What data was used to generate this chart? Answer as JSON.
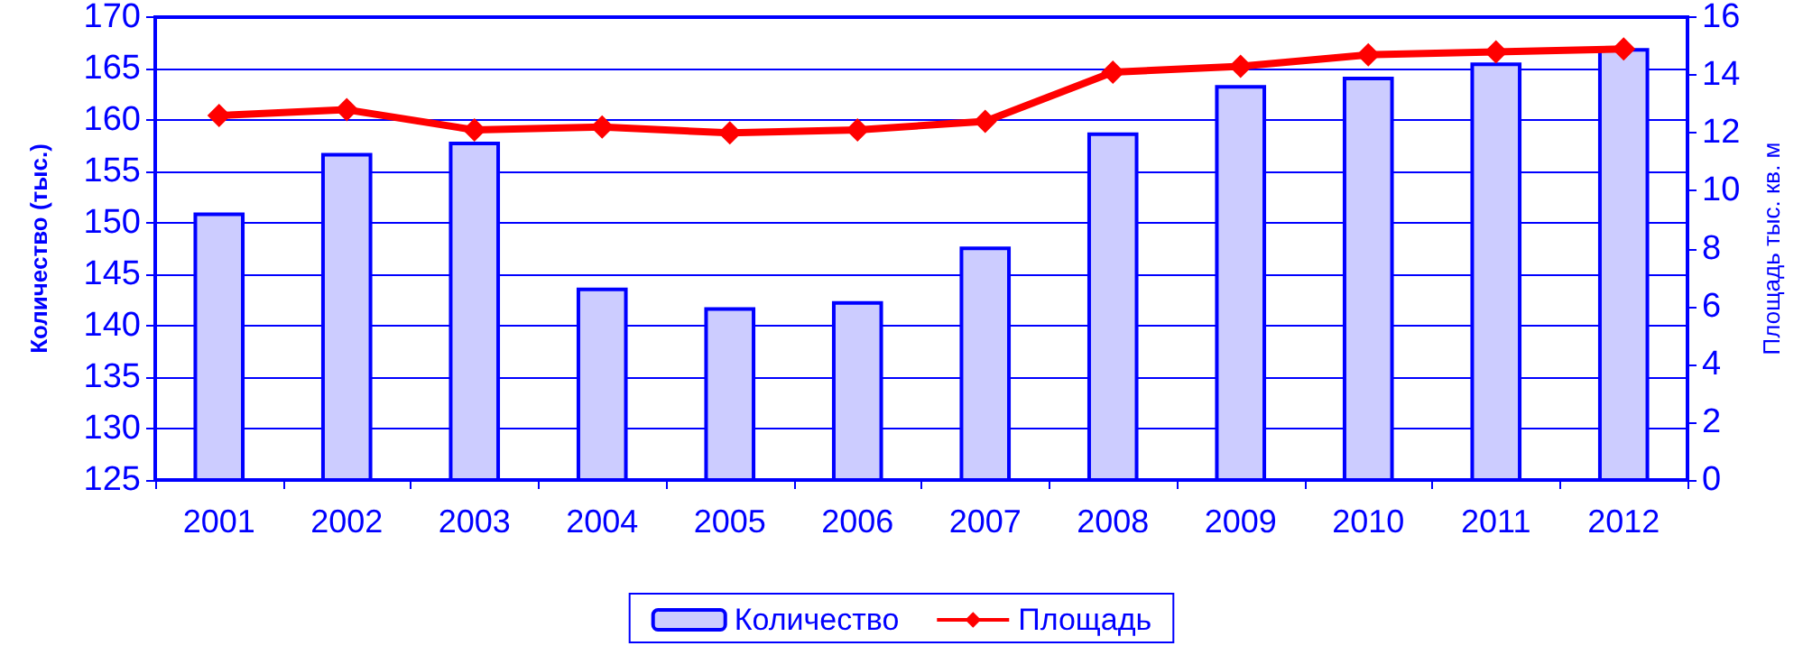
{
  "chart_data": {
    "type": "bar",
    "xlabel": null,
    "ylabel": "Количество (тыс.)",
    "y2label": "Площадь тыс. кв. м",
    "categories": [
      "2001",
      "2002",
      "2003",
      "2004",
      "2005",
      "2006",
      "2007",
      "2008",
      "2009",
      "2010",
      "2011",
      "2012"
    ],
    "series": [
      {
        "name": "Количество",
        "color": "#ccccff",
        "values": [
          151,
          156.8,
          157.9,
          143.7,
          141.8,
          142.4,
          147.7,
          158.8,
          163.4,
          164.2,
          165.6,
          167
        ]
      },
      {
        "name": "Площадь",
        "type": "line",
        "axis": "y2",
        "color": "#ff0000",
        "values": [
          12.6,
          12.8,
          12.1,
          12.2,
          12.0,
          12.1,
          12.4,
          14.1,
          14.3,
          14.7,
          14.8,
          14.9
        ]
      }
    ],
    "ylim": [
      125,
      170
    ],
    "yticks": [
      125,
      130,
      135,
      140,
      145,
      150,
      155,
      160,
      165,
      170
    ],
    "y2lim": [
      0,
      16
    ],
    "y2ticks": [
      0,
      2,
      4,
      6,
      8,
      10,
      12,
      14,
      16
    ],
    "grid": "y",
    "legend": "bottom",
    "marker": "diamond",
    "line_style": "solid"
  }
}
